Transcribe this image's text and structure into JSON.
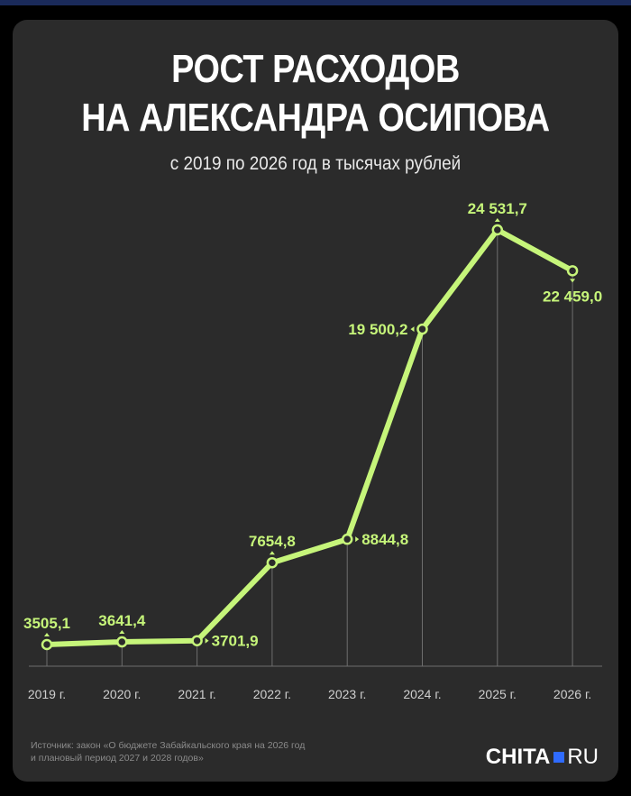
{
  "title_lines": [
    "РОСТ РАСХОДОВ",
    "НА АЛЕКСАНДРА ОСИПОВА"
  ],
  "subtitle": "с 2019 по 2026 год в тысячах рублей",
  "source_lines": [
    "Источник: закон «О бюджете Забайкальского края на 2026 год",
    "и плановый период 2027 и 2028 годов»"
  ],
  "logo": {
    "main": "CHITA",
    "suffix": "RU"
  },
  "colors": {
    "line": "#c6f57a",
    "background": "#2b2b2b",
    "text": "#ffffff",
    "logo_square": "#2f6bff"
  },
  "chart_data": {
    "type": "line",
    "categories": [
      "2019 г.",
      "2020 г.",
      "2021 г.",
      "2022 г.",
      "2023 г.",
      "2024 г.",
      "2025 г.",
      "2026 г."
    ],
    "values": [
      3505.1,
      3641.4,
      3701.9,
      7654.8,
      8844.8,
      19500.2,
      24531.7,
      22459.0
    ],
    "data_labels": [
      "3505,1",
      "3641,4",
      "3701,9",
      "7654,8",
      "8844,8",
      "19 500,2",
      "24 531,7",
      "22 459,0"
    ],
    "label_positions": [
      "above",
      "above",
      "right",
      "above",
      "right",
      "left",
      "above",
      "below"
    ],
    "title": "РОСТ РАСХОДОВ НА АЛЕКСАНДРА ОСИПОВА",
    "subtitle": "с 2019 по 2026 год в тысячах рублей",
    "xlabel": "",
    "ylabel": "",
    "grid": "vertical drop lines",
    "legend": "none"
  }
}
